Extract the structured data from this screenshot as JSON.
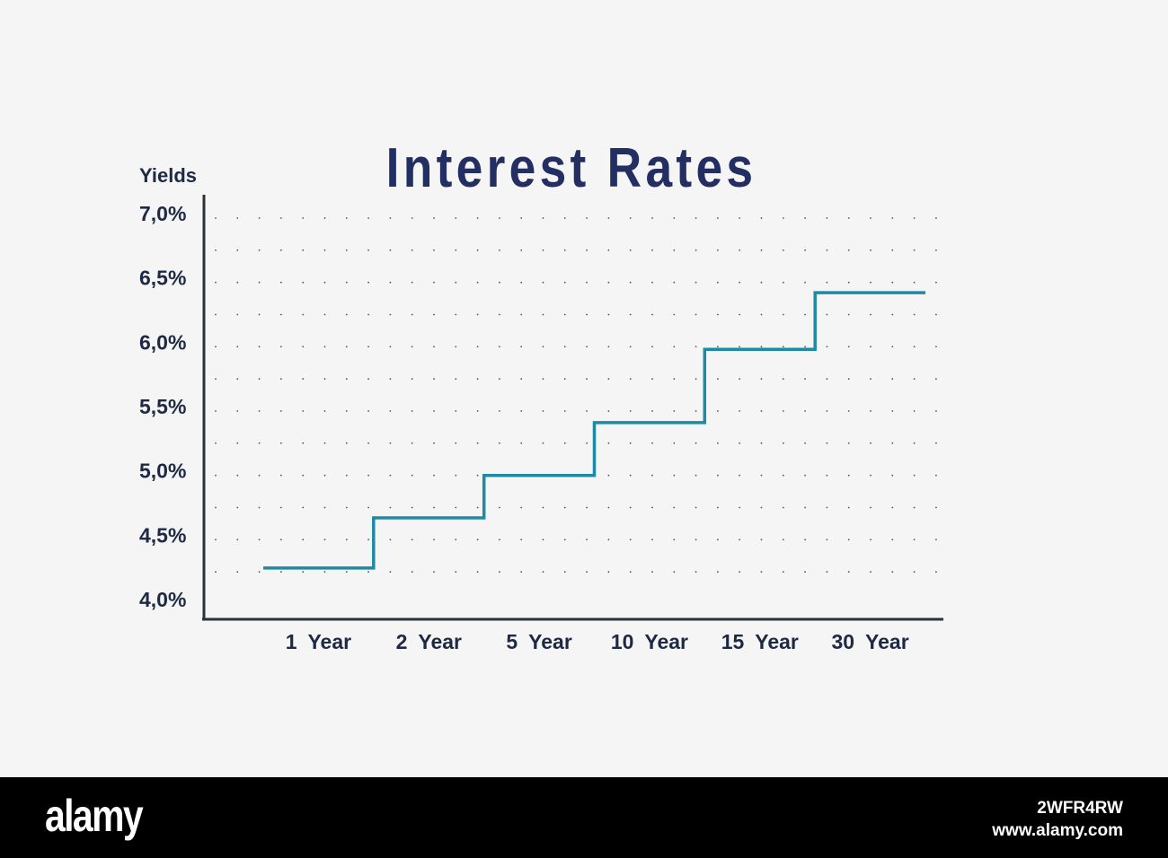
{
  "chart_data": {
    "type": "line",
    "step": true,
    "title": "Interest Rates",
    "ylabel": "Yields",
    "categories": [
      "1 Year",
      "2 Year",
      "5 Year",
      "10 Year",
      "15 Year",
      "30 Year"
    ],
    "series": [
      {
        "values": [
          4.28,
          4.67,
          5.0,
          5.41,
          5.98,
          6.42
        ]
      }
    ],
    "yticks": [
      "7,0%",
      "6,5%",
      "6,0%",
      "5,5%",
      "5,0%",
      "4,5%",
      "4,0%"
    ],
    "ylim": [
      4.0,
      7.0
    ],
    "grid": "dotted",
    "colors": {
      "line": "#1f8aa5",
      "title": "#232f63",
      "axis": "#2b3338",
      "text": "#1e2a44"
    }
  },
  "footer": {
    "logo": "alamy",
    "image_id": "2WFR4RW",
    "site": "www.alamy.com"
  }
}
